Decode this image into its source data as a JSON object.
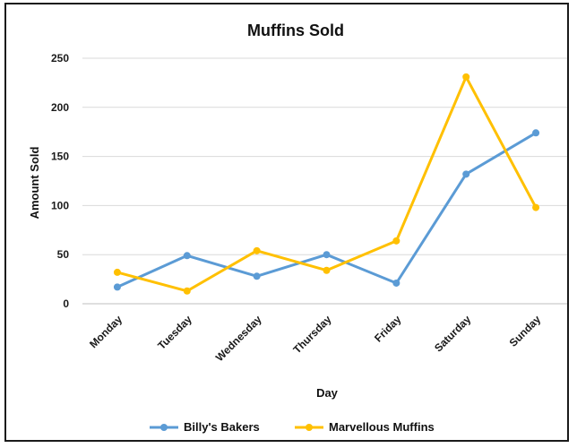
{
  "chart_data": {
    "type": "line",
    "title": "Muffins Sold",
    "xlabel": "Day",
    "ylabel": "Amount Sold",
    "categories": [
      "Monday",
      "Tuesday",
      "Wednesday",
      "Thursday",
      "Friday",
      "Saturday",
      "Sunday"
    ],
    "ylim": [
      0,
      250
    ],
    "yticks": [
      0,
      50,
      100,
      150,
      200,
      250
    ],
    "grid": true,
    "legend_position": "bottom",
    "series": [
      {
        "name": "Billy's Bakers",
        "color": "#5b9bd5",
        "values": [
          17,
          49,
          28,
          50,
          21,
          132,
          174
        ]
      },
      {
        "name": "Marvellous Muffins",
        "color": "#ffc000",
        "values": [
          32,
          13,
          54,
          34,
          64,
          231,
          98
        ]
      }
    ]
  }
}
